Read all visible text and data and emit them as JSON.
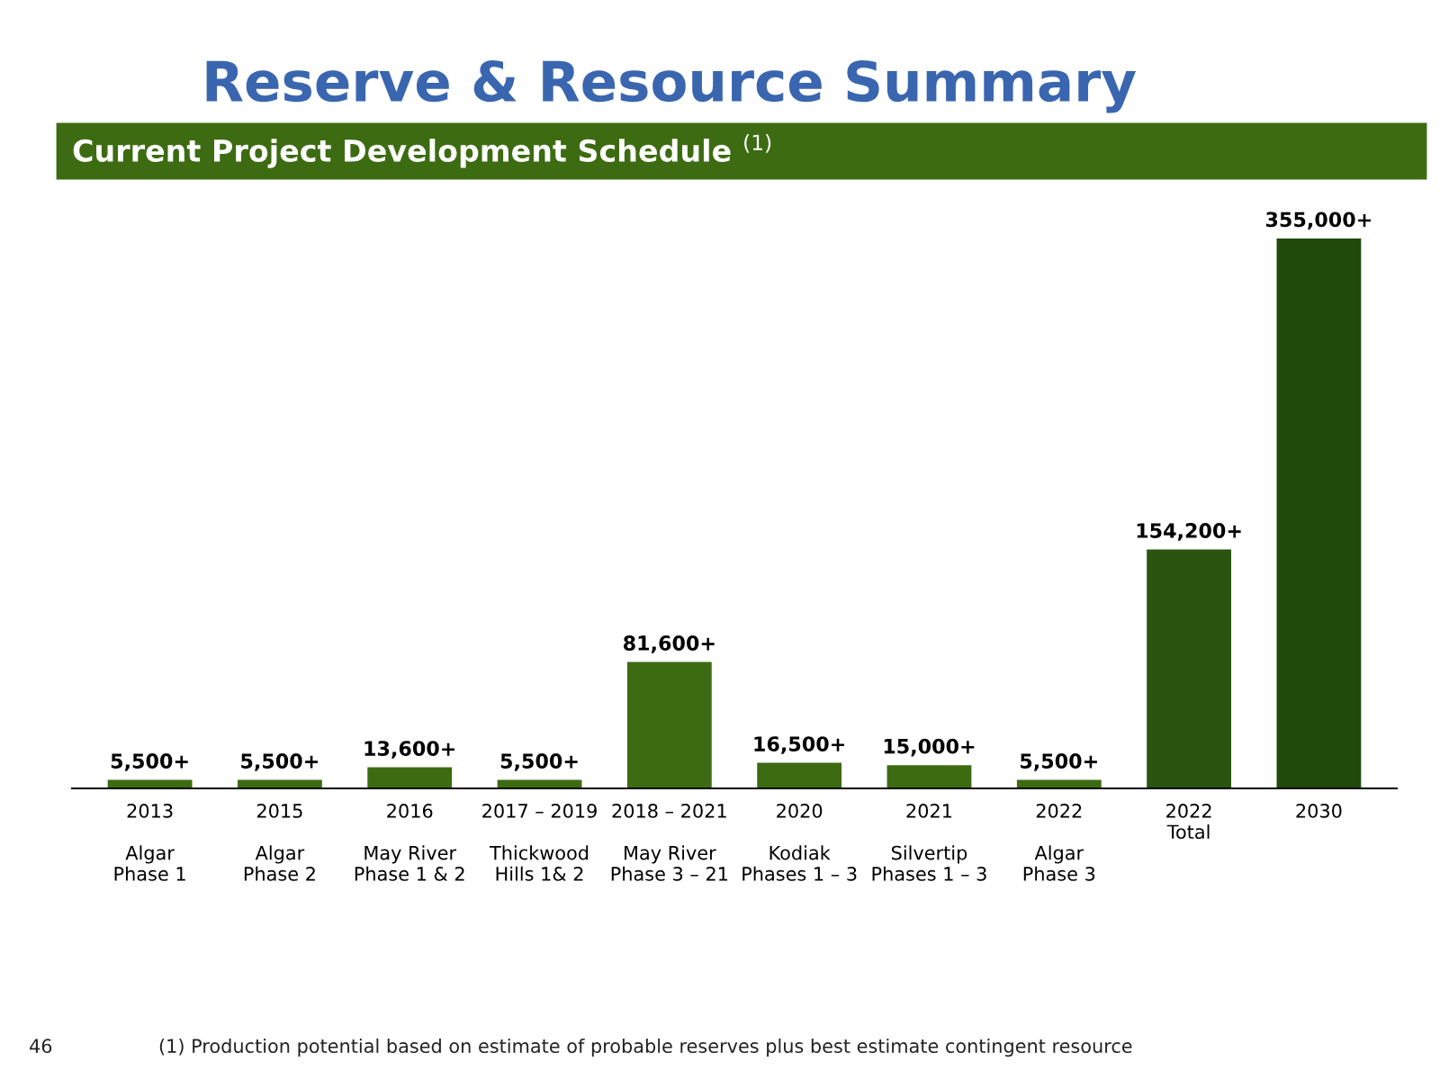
{
  "chart_data": {
    "type": "bar",
    "title": "Reserve & Resource Summary",
    "subtitle": "Current Project Development Schedule $^{(1)}$",
    "categories": [
      "2013\n\nAlgar\nPhase 1",
      "2015\n\nAlgar\nPhase 2",
      "2016\n\nMay River\nPhase 1 & 2",
      "2017 – 2019\n\nThickwood\nHills 1& 2",
      "2018 – 2021\n\nMay River\nPhase 3 – 21",
      "2020\n\nKodiak\nPhases 1 – 3",
      "2021\n\nSilvertip\nPhases 1 – 3",
      "2022\n\nAlgar\nPhase 3",
      "2022\nTotal",
      "2030"
    ],
    "values": [
      5500,
      5500,
      13600,
      5500,
      81600,
      16500,
      15000,
      5500,
      154200,
      355000
    ],
    "value_labels": [
      "5,500+",
      "5,500+",
      "13,600+",
      "5,500+",
      "81,600+",
      "16,500+",
      "15,000+",
      "5,500+",
      "154,200+",
      "355,000+"
    ],
    "colors": [
      "#3d6b12",
      "#3d6b12",
      "#3d6b12",
      "#3d6b12",
      "#3d6b12",
      "#3d6b12",
      "#3d6b12",
      "#3d6b12",
      "#2a5410",
      "#1f4a0c"
    ],
    "tick_labels": "x",
    "grid": false,
    "annotations": [
      "(1) Production potential based on estimate of probable reserves plus best estimate contingent resource",
      "46"
    ]
  }
}
